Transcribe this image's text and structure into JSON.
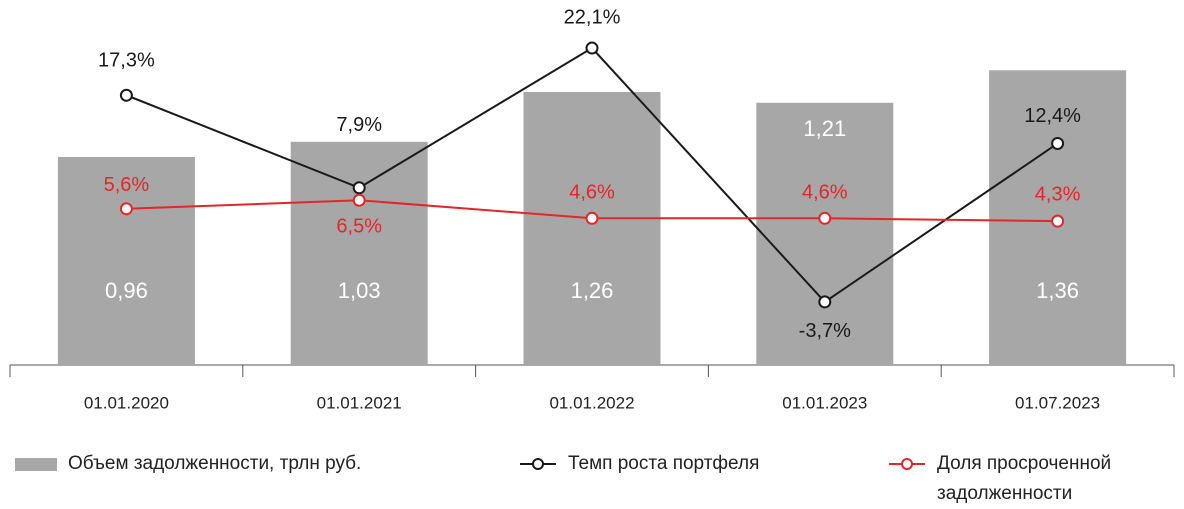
{
  "chart_data": {
    "type": "bar",
    "categories": [
      "01.01.2020",
      "01.01.2021",
      "01.01.2022",
      "01.01.2023",
      "01.07.2023"
    ],
    "series": [
      {
        "name": "Объем задолженности, трлн руб.",
        "type": "bar",
        "color": "#a7a7a7",
        "values": [
          0.96,
          1.03,
          1.26,
          1.21,
          1.36
        ],
        "value_labels": [
          "0,96",
          "1,03",
          "1,26",
          "1,21",
          "1,36"
        ]
      },
      {
        "name": "Темп роста портфеля",
        "type": "line",
        "color": "#1a1a1a",
        "values": [
          17.3,
          7.9,
          22.1,
          -3.7,
          12.4
        ],
        "value_labels": [
          "17,3%",
          "7,9%",
          "22,1%",
          "-3,7%",
          "12,4%"
        ]
      },
      {
        "name": "Доля просроченной задолженности",
        "type": "line",
        "color": "#e3262a",
        "values": [
          5.6,
          6.5,
          4.6,
          4.6,
          4.3
        ],
        "value_labels": [
          "5,6%",
          "6,5%",
          "4,6%",
          "4,6%",
          "4,3%"
        ]
      }
    ]
  }
}
